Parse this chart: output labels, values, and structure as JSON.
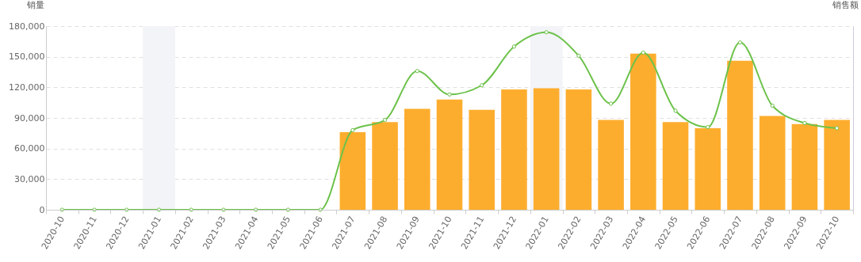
{
  "chart_data": {
    "type": "bar",
    "categories": [
      "2020-10",
      "2020-11",
      "2020-12",
      "2021-01",
      "2021-02",
      "2021-03",
      "2021-04",
      "2021-05",
      "2021-06",
      "2021-07",
      "2021-08",
      "2021-09",
      "2021-10",
      "2021-11",
      "2021-12",
      "2022-01",
      "2022-02",
      "2022-03",
      "2022-04",
      "2022-05",
      "2022-06",
      "2022-07",
      "2022-08",
      "2022-09",
      "2022-10"
    ],
    "series": [
      {
        "color": "#fdad2e",
        "values": [
          0,
          0,
          0,
          0,
          0,
          0,
          0,
          0,
          0,
          76000,
          86000,
          99000,
          108000,
          98000,
          118000,
          119000,
          118000,
          88000,
          153000,
          86000,
          80000,
          146000,
          92000,
          84000,
          88000
        ]
      },
      {
        "type": "line",
        "color": "#6cc24a",
        "marker": "circle",
        "values": [
          0,
          0,
          0,
          0,
          0,
          0,
          0,
          0,
          0,
          78000,
          88000,
          136000,
          113000,
          122000,
          160000,
          174000,
          151000,
          104000,
          154000,
          97000,
          81000,
          164000,
          102000,
          85000,
          80000
        ]
      }
    ],
    "ylabel": "销量",
    "y2label": "销售额",
    "ylim": [
      0,
      180000
    ],
    "yticks": [
      0,
      {
        "value": 30000,
        "label": "30,000"
      },
      {
        "value": 60000,
        "label": "60,000"
      },
      {
        "value": 90000,
        "label": "90,000"
      },
      {
        "value": 120000,
        "label": "120,000"
      },
      {
        "value": 150000,
        "label": "150,000"
      },
      {
        "value": 180000,
        "label": "180,000"
      }
    ],
    "grid": "y",
    "bands": [
      {
        "axis": "x",
        "from": "2021-01",
        "to": "2021-01",
        "color": "#f3f4f8"
      },
      {
        "axis": "x",
        "from": "2022-01",
        "to": "2022-01",
        "color": "#f3f4f8"
      }
    ]
  }
}
